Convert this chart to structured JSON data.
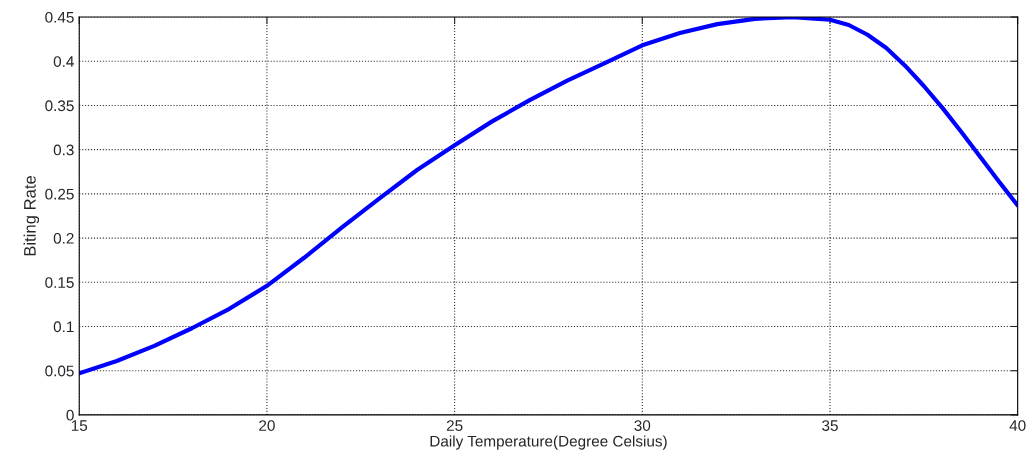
{
  "chart_data": {
    "type": "line",
    "xlabel": "Daily Temperature(Degree Celsius)",
    "ylabel": "Biting Rate",
    "x": [
      15,
      16,
      17,
      18,
      19,
      20,
      21,
      22,
      23,
      24,
      25,
      26,
      27,
      28,
      29,
      30,
      31,
      32,
      33,
      34,
      35,
      35.5,
      36,
      36.5,
      37,
      37.5,
      38,
      38.5,
      39,
      39.5,
      40
    ],
    "series": [
      {
        "color": "#0000ff",
        "values": [
          0.047,
          0.061,
          0.078,
          0.098,
          0.12,
          0.146,
          0.178,
          0.212,
          0.245,
          0.277,
          0.305,
          0.332,
          0.356,
          0.378,
          0.398,
          0.418,
          0.432,
          0.442,
          0.448,
          0.45,
          0.447,
          0.441,
          0.43,
          0.415,
          0.395,
          0.372,
          0.347,
          0.32,
          0.292,
          0.264,
          0.237
        ]
      }
    ],
    "xlim": [
      15,
      40
    ],
    "xticks": [
      15,
      20,
      25,
      30,
      35,
      40
    ],
    "ylim": [
      0,
      0.45
    ],
    "yticks": [
      0,
      0.05,
      0.1,
      0.15,
      0.2,
      0.25,
      0.3,
      0.35,
      0.4,
      0.45
    ],
    "grid": true,
    "line_style": "solid"
  }
}
